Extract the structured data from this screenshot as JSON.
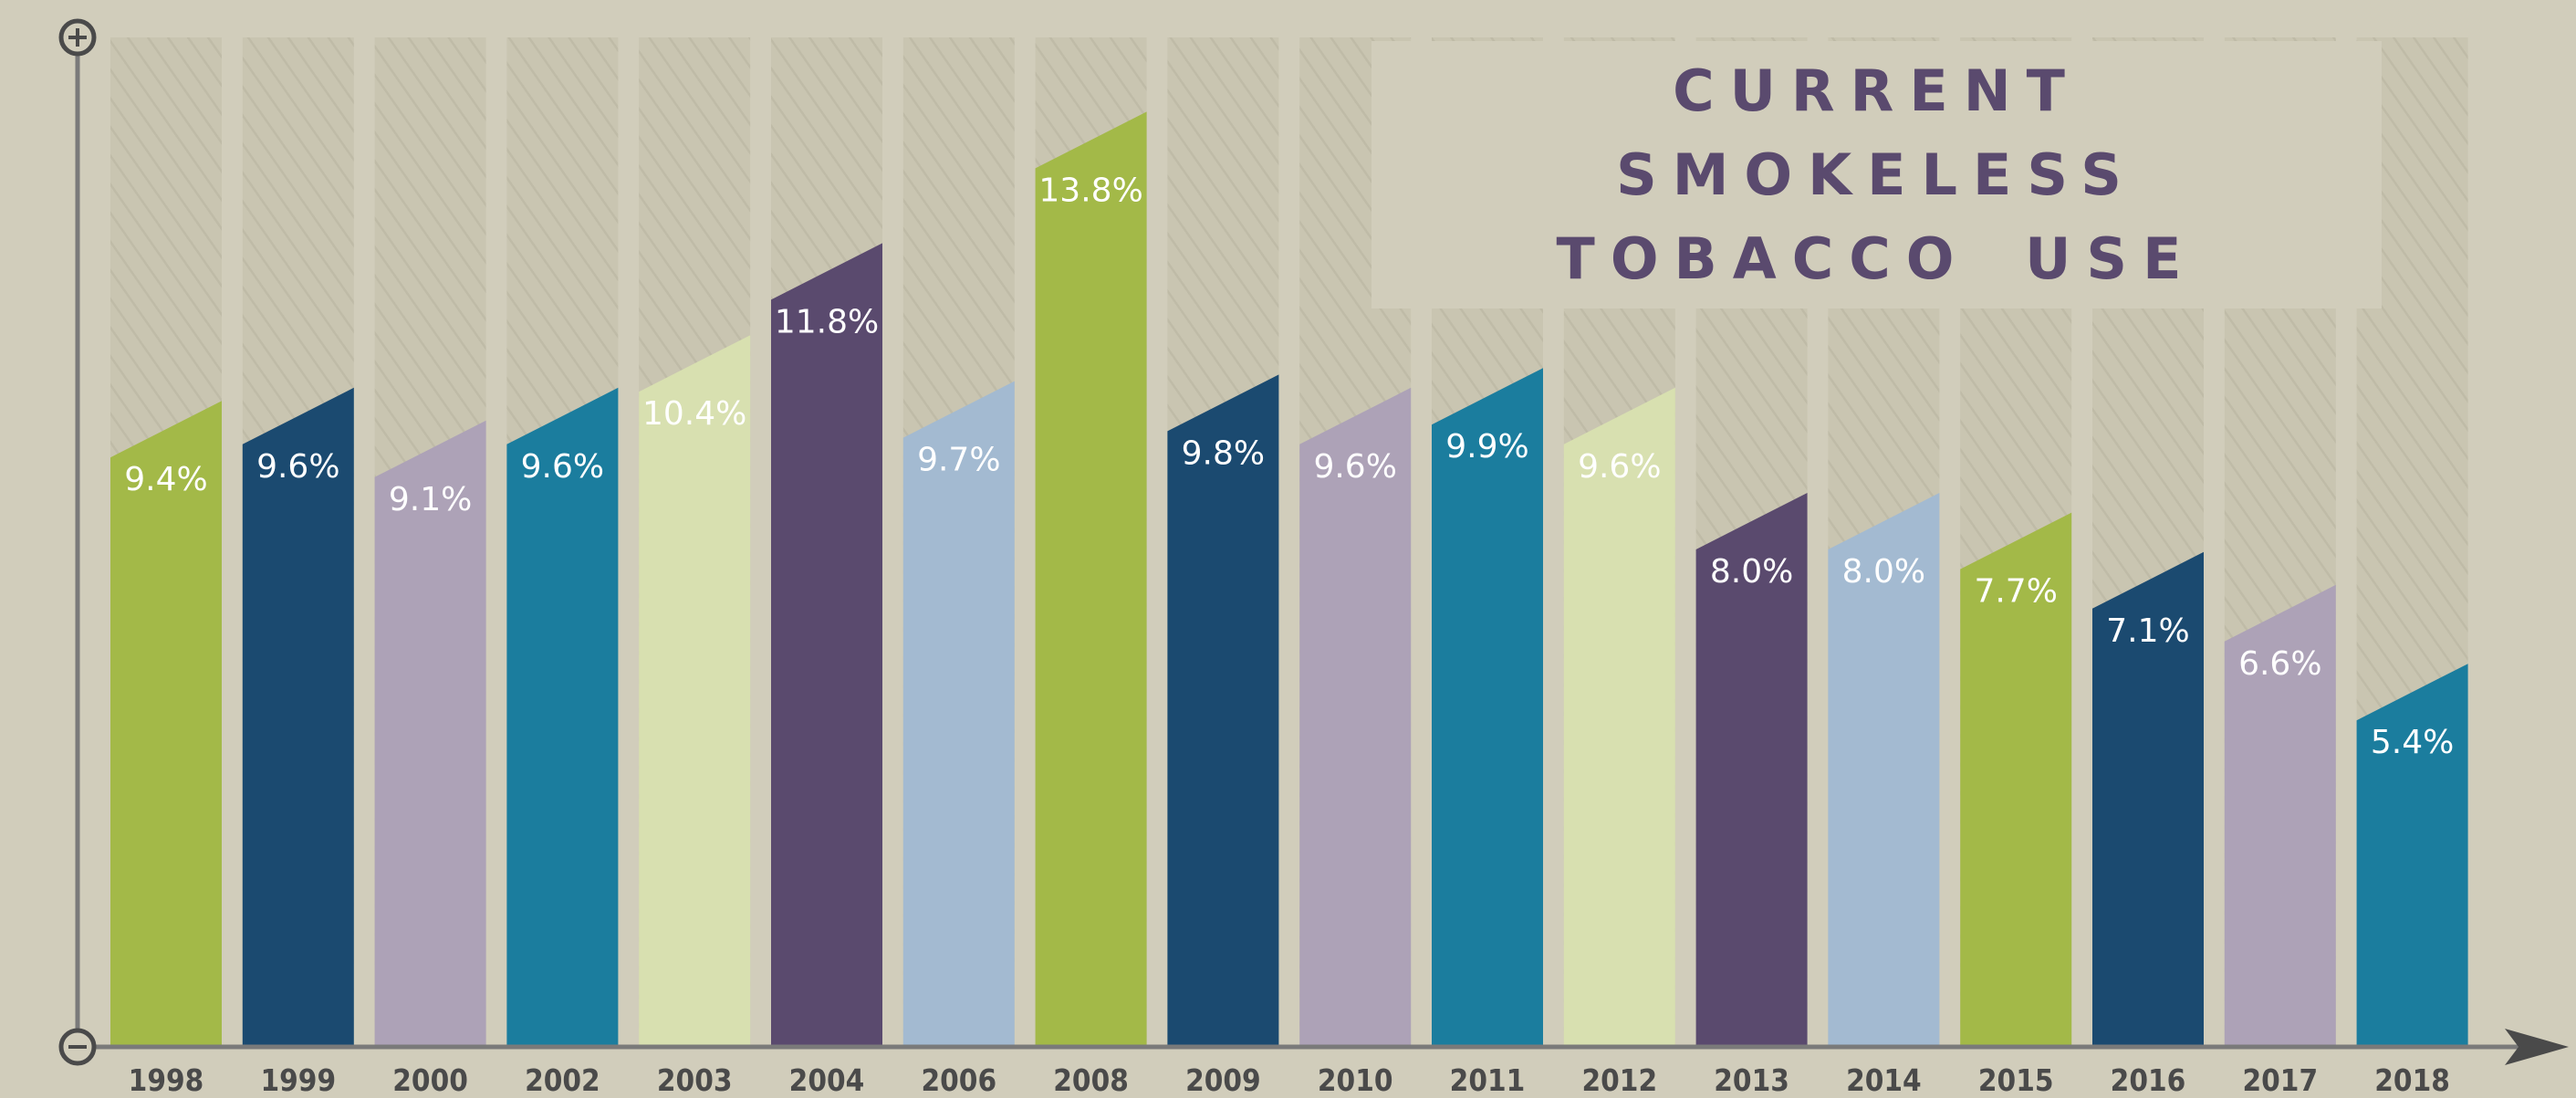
{
  "chart_data": {
    "type": "bar",
    "title": "CURRENT SMOKELESS TOBACCO USE",
    "categories": [
      "1998",
      "1999",
      "2000",
      "2002",
      "2003",
      "2004",
      "2006",
      "2008",
      "2009",
      "2010",
      "2011",
      "2012",
      "2013",
      "2014",
      "2015",
      "2016",
      "2017",
      "2018"
    ],
    "values": [
      9.4,
      9.6,
      9.1,
      9.6,
      10.4,
      11.8,
      9.7,
      13.8,
      9.8,
      9.6,
      9.9,
      9.6,
      8.0,
      8.0,
      7.7,
      7.1,
      6.6,
      5.4
    ],
    "value_labels": [
      "9.4%",
      "9.6%",
      "9.1%",
      "9.6%",
      "10.4%",
      "11.8%",
      "9.7%",
      "13.8%",
      "9.8%",
      "9.6%",
      "9.9%",
      "9.6%",
      "8.0%",
      "8.0%",
      "7.7%",
      "7.1%",
      "6.6%",
      "5.4%"
    ],
    "colors": [
      "#a3b948",
      "#1b4a70",
      "#ada2b7",
      "#1b7d9e",
      "#d8e0b0",
      "#5a4a6e",
      "#a3bad1",
      "#a3b948",
      "#1b4a70",
      "#ada2b7",
      "#1b7d9e",
      "#d8e0b0",
      "#5a4a6e",
      "#a3bad1",
      "#a3b948",
      "#1b4a70",
      "#ada2b7",
      "#1b7d9e"
    ]
  }
}
